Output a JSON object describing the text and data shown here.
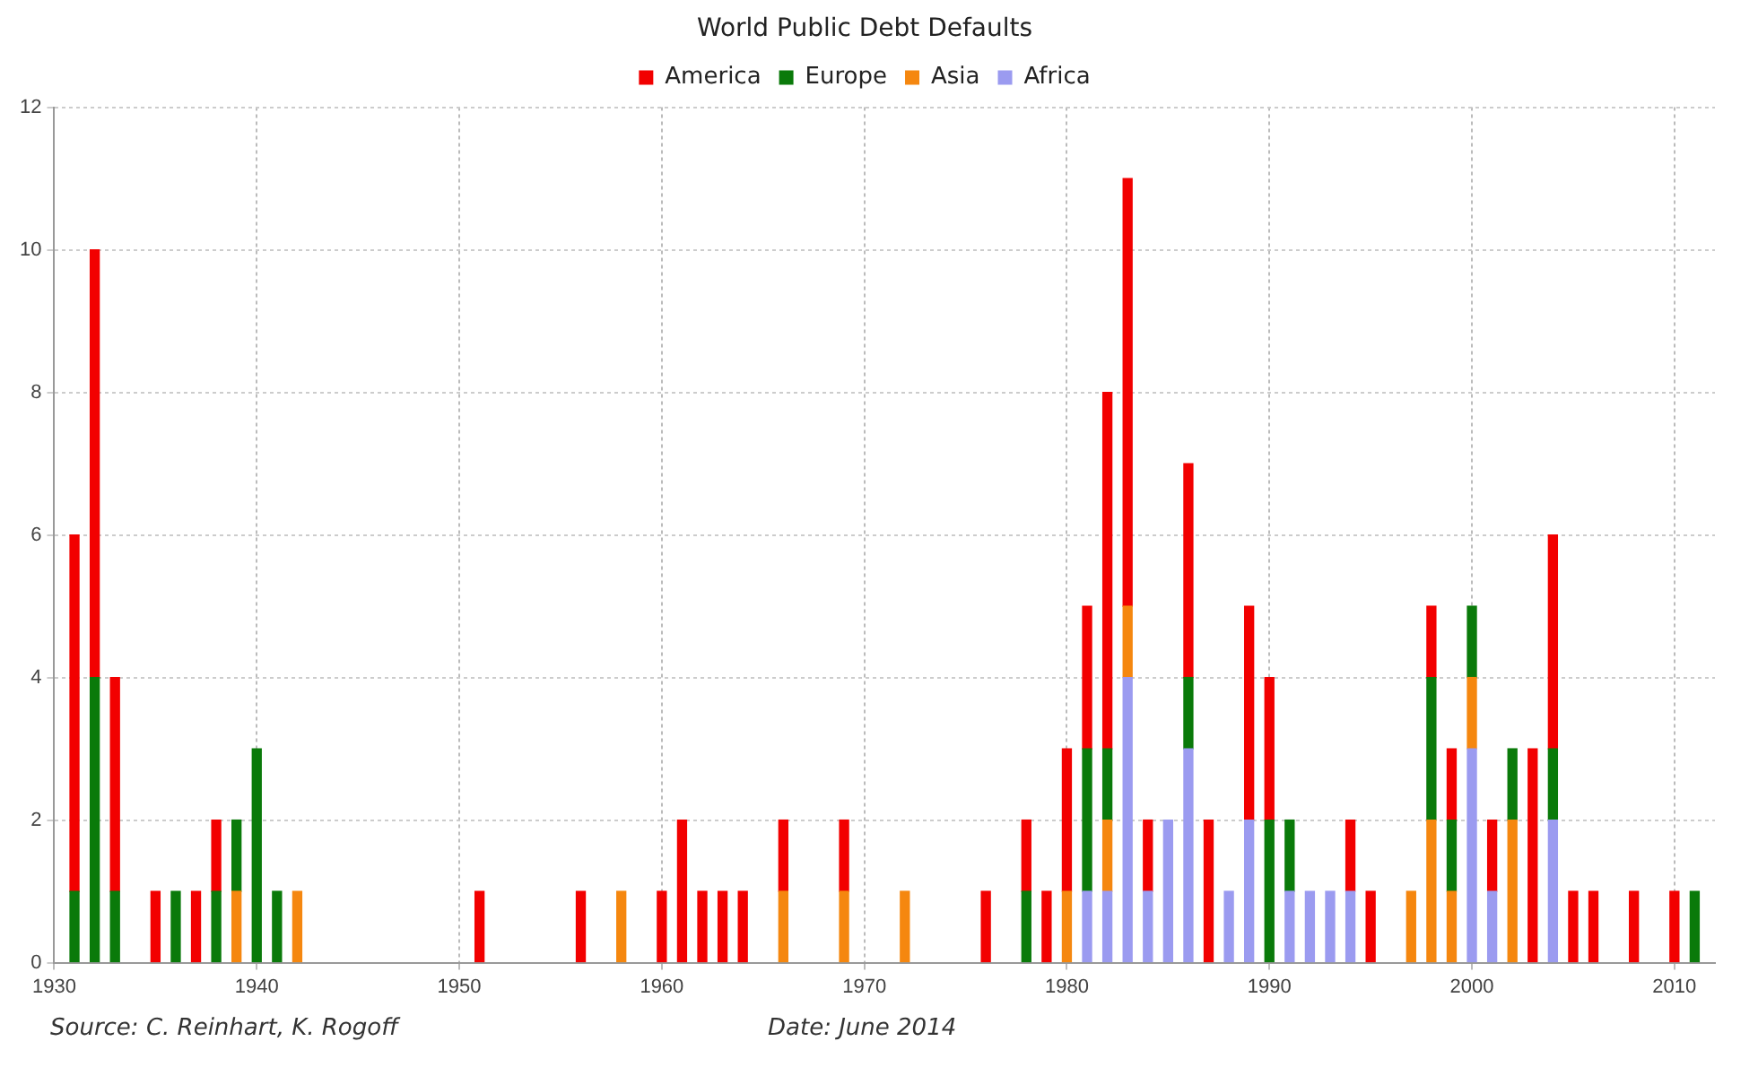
{
  "chart_data": {
    "type": "bar",
    "title": "World Public Debt Defaults",
    "stacked": true,
    "x": [
      1931,
      1932,
      1933,
      1935,
      1936,
      1937,
      1938,
      1939,
      1940,
      1941,
      1942,
      1951,
      1956,
      1958,
      1960,
      1961,
      1962,
      1963,
      1964,
      1966,
      1969,
      1972,
      1976,
      1978,
      1979,
      1980,
      1981,
      1982,
      1983,
      1984,
      1985,
      1986,
      1987,
      1988,
      1989,
      1990,
      1991,
      1992,
      1993,
      1994,
      1995,
      1997,
      1998,
      1999,
      2000,
      2001,
      2002,
      2003,
      2004,
      2005,
      2006,
      2008,
      2010,
      2011
    ],
    "series": [
      {
        "name": "Africa",
        "color": "#9b9bf0",
        "values": [
          null,
          null,
          null,
          null,
          null,
          null,
          null,
          null,
          null,
          null,
          null,
          null,
          null,
          null,
          null,
          null,
          null,
          null,
          null,
          null,
          null,
          null,
          null,
          null,
          null,
          null,
          1,
          1,
          4,
          1,
          2,
          3,
          null,
          1,
          2,
          null,
          1,
          1,
          1,
          1,
          null,
          null,
          null,
          null,
          3,
          1,
          null,
          null,
          2,
          null,
          null,
          null,
          null,
          null
        ]
      },
      {
        "name": "Asia",
        "color": "#f5870f",
        "values": [
          null,
          null,
          null,
          null,
          null,
          null,
          null,
          1,
          null,
          null,
          1,
          null,
          null,
          1,
          null,
          null,
          null,
          null,
          null,
          1,
          1,
          1,
          null,
          null,
          null,
          1,
          null,
          1,
          1,
          null,
          null,
          null,
          null,
          null,
          null,
          null,
          null,
          null,
          null,
          null,
          null,
          1,
          2,
          1,
          1,
          null,
          2,
          null,
          null,
          null,
          null,
          null,
          null,
          null
        ]
      },
      {
        "name": "Europe",
        "color": "#0a7a0a",
        "values": [
          1,
          4,
          1,
          null,
          1,
          null,
          1,
          1,
          3,
          1,
          null,
          null,
          null,
          null,
          null,
          null,
          null,
          null,
          null,
          null,
          null,
          null,
          null,
          1,
          null,
          null,
          2,
          1,
          null,
          null,
          null,
          1,
          null,
          null,
          null,
          2,
          1,
          null,
          null,
          null,
          null,
          null,
          2,
          1,
          1,
          null,
          1,
          null,
          1,
          null,
          null,
          null,
          null,
          1
        ]
      },
      {
        "name": "America",
        "color": "#f20000",
        "values": [
          5,
          6,
          3,
          1,
          null,
          1,
          1,
          null,
          null,
          null,
          null,
          1,
          1,
          null,
          1,
          2,
          1,
          1,
          1,
          1,
          1,
          null,
          1,
          1,
          1,
          2,
          2,
          5,
          6,
          1,
          null,
          3,
          2,
          null,
          3,
          2,
          null,
          null,
          null,
          1,
          1,
          null,
          1,
          1,
          null,
          1,
          null,
          3,
          3,
          1,
          1,
          1,
          1,
          null
        ]
      }
    ],
    "xlim": [
      1930,
      2012
    ],
    "xticks": [
      1930,
      1940,
      1950,
      1960,
      1970,
      1980,
      1990,
      2000,
      2010
    ],
    "ylim": [
      0,
      12
    ],
    "yticks": [
      0,
      2,
      4,
      6,
      8,
      10,
      12
    ],
    "grid": true,
    "legend": "top",
    "annotations": [
      "Source: C. Reinhart, K. Rogoff",
      "Date: June 2014"
    ]
  }
}
